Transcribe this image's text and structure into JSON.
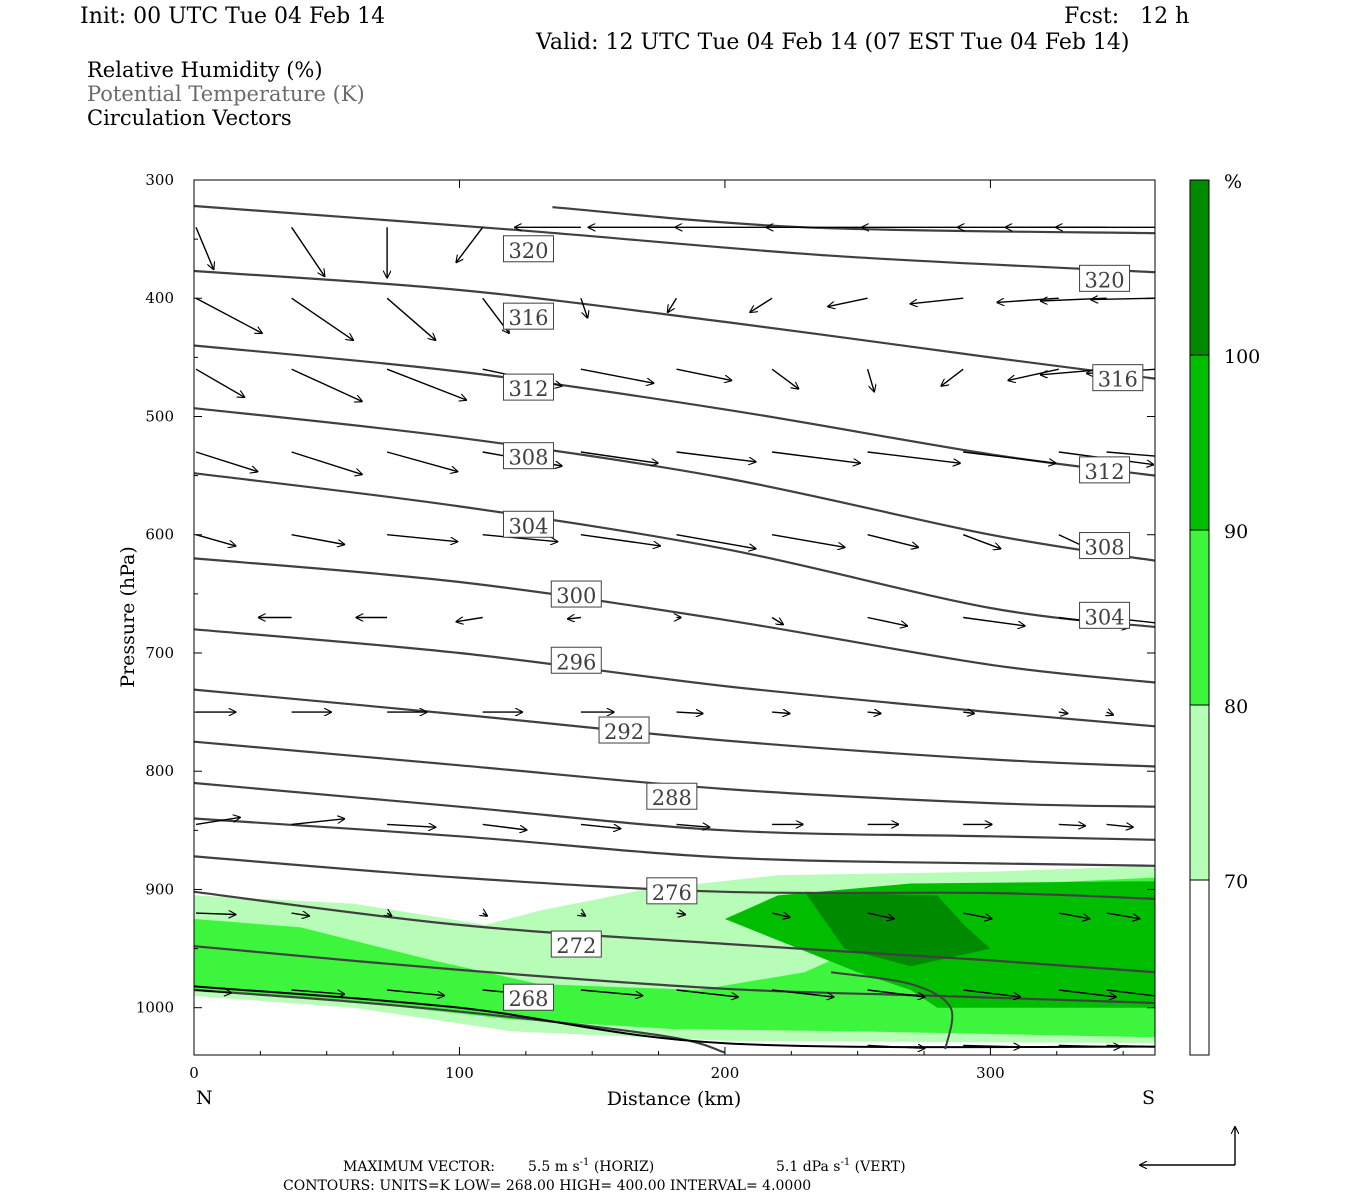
{
  "header": {
    "init": "Init: 00 UTC Tue 04 Feb 14",
    "fcst": "Fcst:   12 h",
    "valid": "Valid: 12 UTC Tue 04 Feb 14 (07 EST Tue 04 Feb 14)"
  },
  "legend": {
    "line1": "Relative Humidity (%)",
    "line2": "Potential Temperature (K)",
    "line3": "Circulation Vectors"
  },
  "footer": {
    "max_vector_label": "MAXIMUM VECTOR:",
    "max_horiz": "5.5 m s",
    "max_horiz_unit": "(HORIZ)",
    "max_vert": "5.1 dPa s",
    "max_vert_unit": "(VERT)",
    "contours": "CONTOURS:  UNITS=K  LOW=  268.00       HIGH=  400.00       INTERVAL=    4.0000",
    "exp": "-1"
  },
  "colors": {
    "rh70": "#b7fcb7",
    "rh80": "#3ef53e",
    "rh90": "#00bd00",
    "rh100": "#008a00",
    "theta": "#404040",
    "vector": "#000000"
  },
  "chart_data": {
    "type": "cross-section",
    "xlabel": "Distance (km)",
    "ylabel": "Pressure (hPa)",
    "x_ticks": [
      0,
      100,
      200,
      300
    ],
    "y_ticks": [
      300,
      400,
      500,
      600,
      700,
      800,
      900,
      1000
    ],
    "xlim": [
      0,
      362
    ],
    "ylim": [
      300,
      1040
    ],
    "x_end_labels": {
      "left": "N",
      "right": "S"
    },
    "colorbar": {
      "unit": "%",
      "levels": [
        70,
        80,
        90,
        100
      ],
      "label_strings": [
        "70",
        "80",
        "90",
        "100"
      ]
    },
    "theta_contours": [
      {
        "label": "320",
        "x": [
          135,
          230,
          362
        ],
        "y": [
          323,
          340,
          345
        ]
      },
      {
        "label": "320",
        "x": [
          0,
          120,
          240,
          362
        ],
        "y": [
          322,
          342,
          364,
          378
        ]
      },
      {
        "label": "316",
        "x": [
          0,
          100,
          200,
          300,
          362
        ],
        "y": [
          377,
          393,
          420,
          450,
          468
        ]
      },
      {
        "label": "312",
        "x": [
          0,
          100,
          200,
          300,
          362
        ],
        "y": [
          440,
          462,
          494,
          532,
          550
        ]
      },
      {
        "label": "308",
        "x": [
          0,
          100,
          200,
          300,
          362
        ],
        "y": [
          493,
          518,
          552,
          600,
          622
        ]
      },
      {
        "label": "304",
        "x": [
          0,
          100,
          200,
          300,
          362
        ],
        "y": [
          548,
          576,
          612,
          662,
          678
        ]
      },
      {
        "label": "300",
        "x": [
          0,
          100,
          200,
          300,
          362
        ],
        "y": [
          620,
          640,
          672,
          710,
          725
        ]
      },
      {
        "label": "296",
        "x": [
          0,
          100,
          200,
          300,
          362
        ],
        "y": [
          680,
          700,
          728,
          750,
          762
        ]
      },
      {
        "label": "292",
        "x": [
          0,
          100,
          200,
          300,
          362
        ],
        "y": [
          731,
          752,
          774,
          790,
          796
        ]
      },
      {
        "label": "288",
        "x": [
          0,
          100,
          200,
          300,
          362
        ],
        "y": [
          775,
          795,
          815,
          827,
          830
        ]
      },
      {
        "label": "",
        "x": [
          0,
          100,
          200,
          300,
          362
        ],
        "y": [
          810,
          830,
          850,
          855,
          858
        ]
      },
      {
        "label": "",
        "x": [
          0,
          100,
          200,
          300,
          362
        ],
        "y": [
          840,
          855,
          873,
          878,
          880
        ]
      },
      {
        "label": "276",
        "x": [
          0,
          100,
          200,
          300,
          362
        ],
        "y": [
          872,
          890,
          902,
          903,
          908
        ]
      },
      {
        "label": "",
        "x": [
          0,
          100,
          200,
          300,
          362
        ],
        "y": [
          902,
          930,
          946,
          960,
          970
        ]
      },
      {
        "label": "272",
        "x": [
          0,
          100,
          200,
          280,
          362
        ],
        "y": [
          948,
          968,
          984,
          990,
          996
        ]
      },
      {
        "label": "268",
        "x": [
          0,
          60,
          120,
          180,
          200
        ],
        "y": [
          985,
          995,
          1008,
          1025,
          1038
        ]
      }
    ],
    "label_boxes": [
      {
        "text": "320",
        "x": 126,
        "y": 359
      },
      {
        "text": "316",
        "x": 126,
        "y": 416
      },
      {
        "text": "312",
        "x": 126,
        "y": 476
      },
      {
        "text": "308",
        "x": 126,
        "y": 534
      },
      {
        "text": "304",
        "x": 126,
        "y": 592
      },
      {
        "text": "300",
        "x": 144,
        "y": 651
      },
      {
        "text": "296",
        "x": 144,
        "y": 707
      },
      {
        "text": "292",
        "x": 162,
        "y": 766
      },
      {
        "text": "288",
        "x": 180,
        "y": 822
      },
      {
        "text": "276",
        "x": 180,
        "y": 902
      },
      {
        "text": "272",
        "x": 144,
        "y": 947
      },
      {
        "text": "268",
        "x": 126,
        "y": 992
      },
      {
        "text": "320",
        "x": 343,
        "y": 384
      },
      {
        "text": "316",
        "x": 348,
        "y": 468
      },
      {
        "text": "312",
        "x": 343,
        "y": 546
      },
      {
        "text": "308",
        "x": 343,
        "y": 610
      },
      {
        "text": "304",
        "x": 343,
        "y": 669
      }
    ],
    "vectors_rows": [
      {
        "p": 340,
        "u": [
          0.8,
          1.5,
          0.0,
          -1.2,
          -3.0,
          -4.0,
          -4.4,
          -4.6,
          -4.6,
          -4.6,
          -4.6,
          -4.6
        ],
        "w": [
          3.0,
          3.5,
          3.6,
          2.5,
          0.0,
          0.0,
          0.0,
          0.0,
          0.0,
          0.0,
          0.0,
          0.0
        ]
      },
      {
        "p": 400,
        "u": [
          3.0,
          2.8,
          2.2,
          1.2,
          0.3,
          -0.4,
          -1.0,
          -1.8,
          -2.4,
          -2.8,
          -3.0,
          -3.0
        ],
        "w": [
          2.5,
          3.0,
          3.0,
          2.5,
          1.4,
          1.0,
          1.0,
          0.6,
          0.4,
          0.3,
          0.2,
          0.1
        ]
      },
      {
        "p": 460,
        "u": [
          2.2,
          3.2,
          3.6,
          3.6,
          3.3,
          2.5,
          1.2,
          0.3,
          -1.0,
          -2.3,
          -3.0,
          -3.2
        ],
        "w": [
          2.0,
          2.3,
          2.2,
          1.2,
          1.0,
          0.8,
          1.4,
          1.6,
          1.2,
          0.8,
          0.4,
          0.3
        ]
      },
      {
        "p": 530,
        "u": [
          2.8,
          3.2,
          3.2,
          3.6,
          3.5,
          3.6,
          4.0,
          4.2,
          4.2,
          4.3,
          4.5,
          4.6
        ],
        "w": [
          1.4,
          1.6,
          1.4,
          1.0,
          0.8,
          0.7,
          0.8,
          0.8,
          0.8,
          0.9,
          0.6,
          0.5
        ]
      },
      {
        "p": 600,
        "u": [
          1.8,
          2.4,
          3.2,
          3.4,
          3.6,
          3.6,
          3.3,
          2.3,
          1.7,
          1.5,
          1.0,
          0.8
        ],
        "w": [
          0.8,
          0.7,
          0.5,
          0.5,
          0.8,
          1.0,
          0.9,
          0.9,
          1.0,
          1.1,
          1.2,
          1.2
        ]
      },
      {
        "p": 670,
        "u": [
          0.0,
          -1.5,
          -1.4,
          -1.2,
          -0.6,
          0.2,
          0.5,
          1.8,
          2.8,
          3.2,
          3.5,
          3.6
        ],
        "w": [
          0.0,
          0.0,
          0.0,
          0.3,
          0.1,
          0.0,
          0.5,
          0.6,
          0.6,
          0.7,
          0.6,
          0.5
        ]
      },
      {
        "p": 750,
        "u": [
          1.8,
          1.8,
          1.8,
          1.8,
          1.5,
          1.2,
          0.8,
          0.6,
          0.5,
          0.4,
          0.3,
          0.3
        ],
        "w": [
          0.0,
          0.0,
          0.0,
          0.0,
          0.0,
          0.1,
          0.1,
          0.1,
          0.1,
          0.1,
          0.2,
          0.3
        ]
      },
      {
        "p": 845,
        "u": [
          2.0,
          2.4,
          2.2,
          2.0,
          1.8,
          1.5,
          1.4,
          1.4,
          1.3,
          1.2,
          1.2,
          1.4
        ],
        "w": [
          -0.5,
          -0.4,
          0.2,
          0.4,
          0.3,
          0.2,
          0.0,
          0.0,
          0.0,
          0.1,
          0.2,
          0.3
        ]
      },
      {
        "p": 920,
        "u": [
          1.8,
          0.8,
          0.2,
          0.2,
          0.2,
          0.4,
          0.8,
          1.2,
          1.3,
          1.4,
          1.5,
          1.6
        ],
        "w": [
          0.1,
          0.2,
          0.2,
          0.2,
          0.2,
          0.1,
          0.3,
          0.4,
          0.4,
          0.4,
          0.4,
          0.3
        ]
      },
      {
        "p": 985,
        "u": [
          1.6,
          2.4,
          2.6,
          2.8,
          2.8,
          2.8,
          2.8,
          2.6,
          2.6,
          2.6,
          2.6,
          2.6
        ],
        "w": [
          0.2,
          0.3,
          0.4,
          0.4,
          0.4,
          0.5,
          0.5,
          0.5,
          0.5,
          0.5,
          0.5,
          0.5
        ]
      },
      {
        "p": 1032,
        "u": [
          0.0,
          0.0,
          0.0,
          0.0,
          0.0,
          0.0,
          0.0,
          2.6,
          2.6,
          2.8,
          2.8,
          2.8
        ],
        "w": [
          0.0,
          0.0,
          0.0,
          0.0,
          0.0,
          0.0,
          0.0,
          0.2,
          0.1,
          0.1,
          0.1,
          0.1
        ]
      }
    ],
    "vector_x": [
      0,
      36,
      72,
      108,
      145,
      181,
      217,
      253,
      289,
      325,
      343,
      362
    ],
    "rh_regions": [
      {
        "level": 70,
        "points": [
          [
            0,
            905
          ],
          [
            60,
            912
          ],
          [
            110,
            930
          ],
          [
            130,
            918
          ],
          [
            170,
            900
          ],
          [
            220,
            888
          ],
          [
            300,
            885
          ],
          [
            362,
            880
          ],
          [
            362,
            1030
          ],
          [
            200,
            1028
          ],
          [
            120,
            1020
          ],
          [
            60,
            1000
          ],
          [
            0,
            990
          ]
        ]
      },
      {
        "level": 80,
        "points": [
          [
            0,
            925
          ],
          [
            40,
            932
          ],
          [
            90,
            960
          ],
          [
            130,
            980
          ],
          [
            190,
            985
          ],
          [
            230,
            970
          ],
          [
            240,
            960
          ],
          [
            220,
            910
          ],
          [
            265,
            900
          ],
          [
            362,
            890
          ],
          [
            362,
            1025
          ],
          [
            250,
            1020
          ],
          [
            180,
            1018
          ],
          [
            120,
            1010
          ],
          [
            60,
            995
          ],
          [
            0,
            985
          ]
        ]
      },
      {
        "level": 90,
        "points": [
          [
            200,
            925
          ],
          [
            220,
            905
          ],
          [
            270,
            895
          ],
          [
            362,
            893
          ],
          [
            362,
            1000
          ],
          [
            280,
            1000
          ],
          [
            270,
            985
          ],
          [
            250,
            970
          ]
        ]
      },
      {
        "level": 100,
        "points": [
          [
            230,
            902
          ],
          [
            280,
            905
          ],
          [
            290,
            930
          ],
          [
            300,
            950
          ],
          [
            280,
            960
          ],
          [
            270,
            965
          ],
          [
            245,
            950
          ]
        ]
      }
    ]
  }
}
